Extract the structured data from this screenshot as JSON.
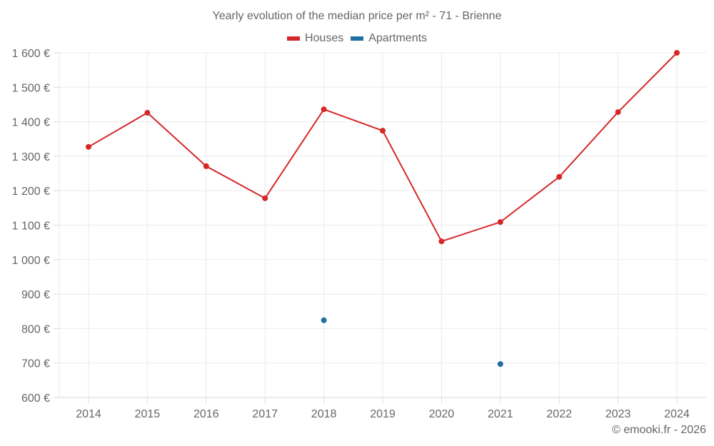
{
  "title": "Yearly evolution of the median price per m² - 71 - Brienne",
  "legend": {
    "items": [
      {
        "label": "Houses",
        "color": "#d62728"
      },
      {
        "label": "Apartments",
        "color": "#1f6fa3"
      }
    ]
  },
  "credit": "© emooki.fr - 2026",
  "chart_data": {
    "type": "line",
    "title": "Yearly evolution of the median price per m² - 71 - Brienne",
    "xlabel": "",
    "ylabel": "",
    "categories": [
      "2014",
      "2015",
      "2016",
      "2017",
      "2018",
      "2019",
      "2020",
      "2021",
      "2022",
      "2023",
      "2024"
    ],
    "series": [
      {
        "name": "Houses",
        "color": "#d62728",
        "values": [
          1327,
          1426,
          1271,
          1178,
          1436,
          1374,
          1053,
          1109,
          1240,
          1428,
          1600
        ]
      },
      {
        "name": "Apartments",
        "color": "#1f6fa3",
        "values": [
          null,
          null,
          null,
          null,
          824,
          null,
          null,
          697,
          null,
          null,
          null
        ]
      }
    ],
    "ylim": [
      600,
      1600
    ],
    "yticks": [
      600,
      700,
      800,
      900,
      1000,
      1100,
      1200,
      1300,
      1400,
      1500,
      1600
    ],
    "ytick_labels": [
      "600 €",
      "700 €",
      "800 €",
      "900 €",
      "1 000 €",
      "1 100 €",
      "1 200 €",
      "1 300 €",
      "1 400 €",
      "1 500 €",
      "1 600 €"
    ],
    "grid": true,
    "legend_position": "top"
  }
}
